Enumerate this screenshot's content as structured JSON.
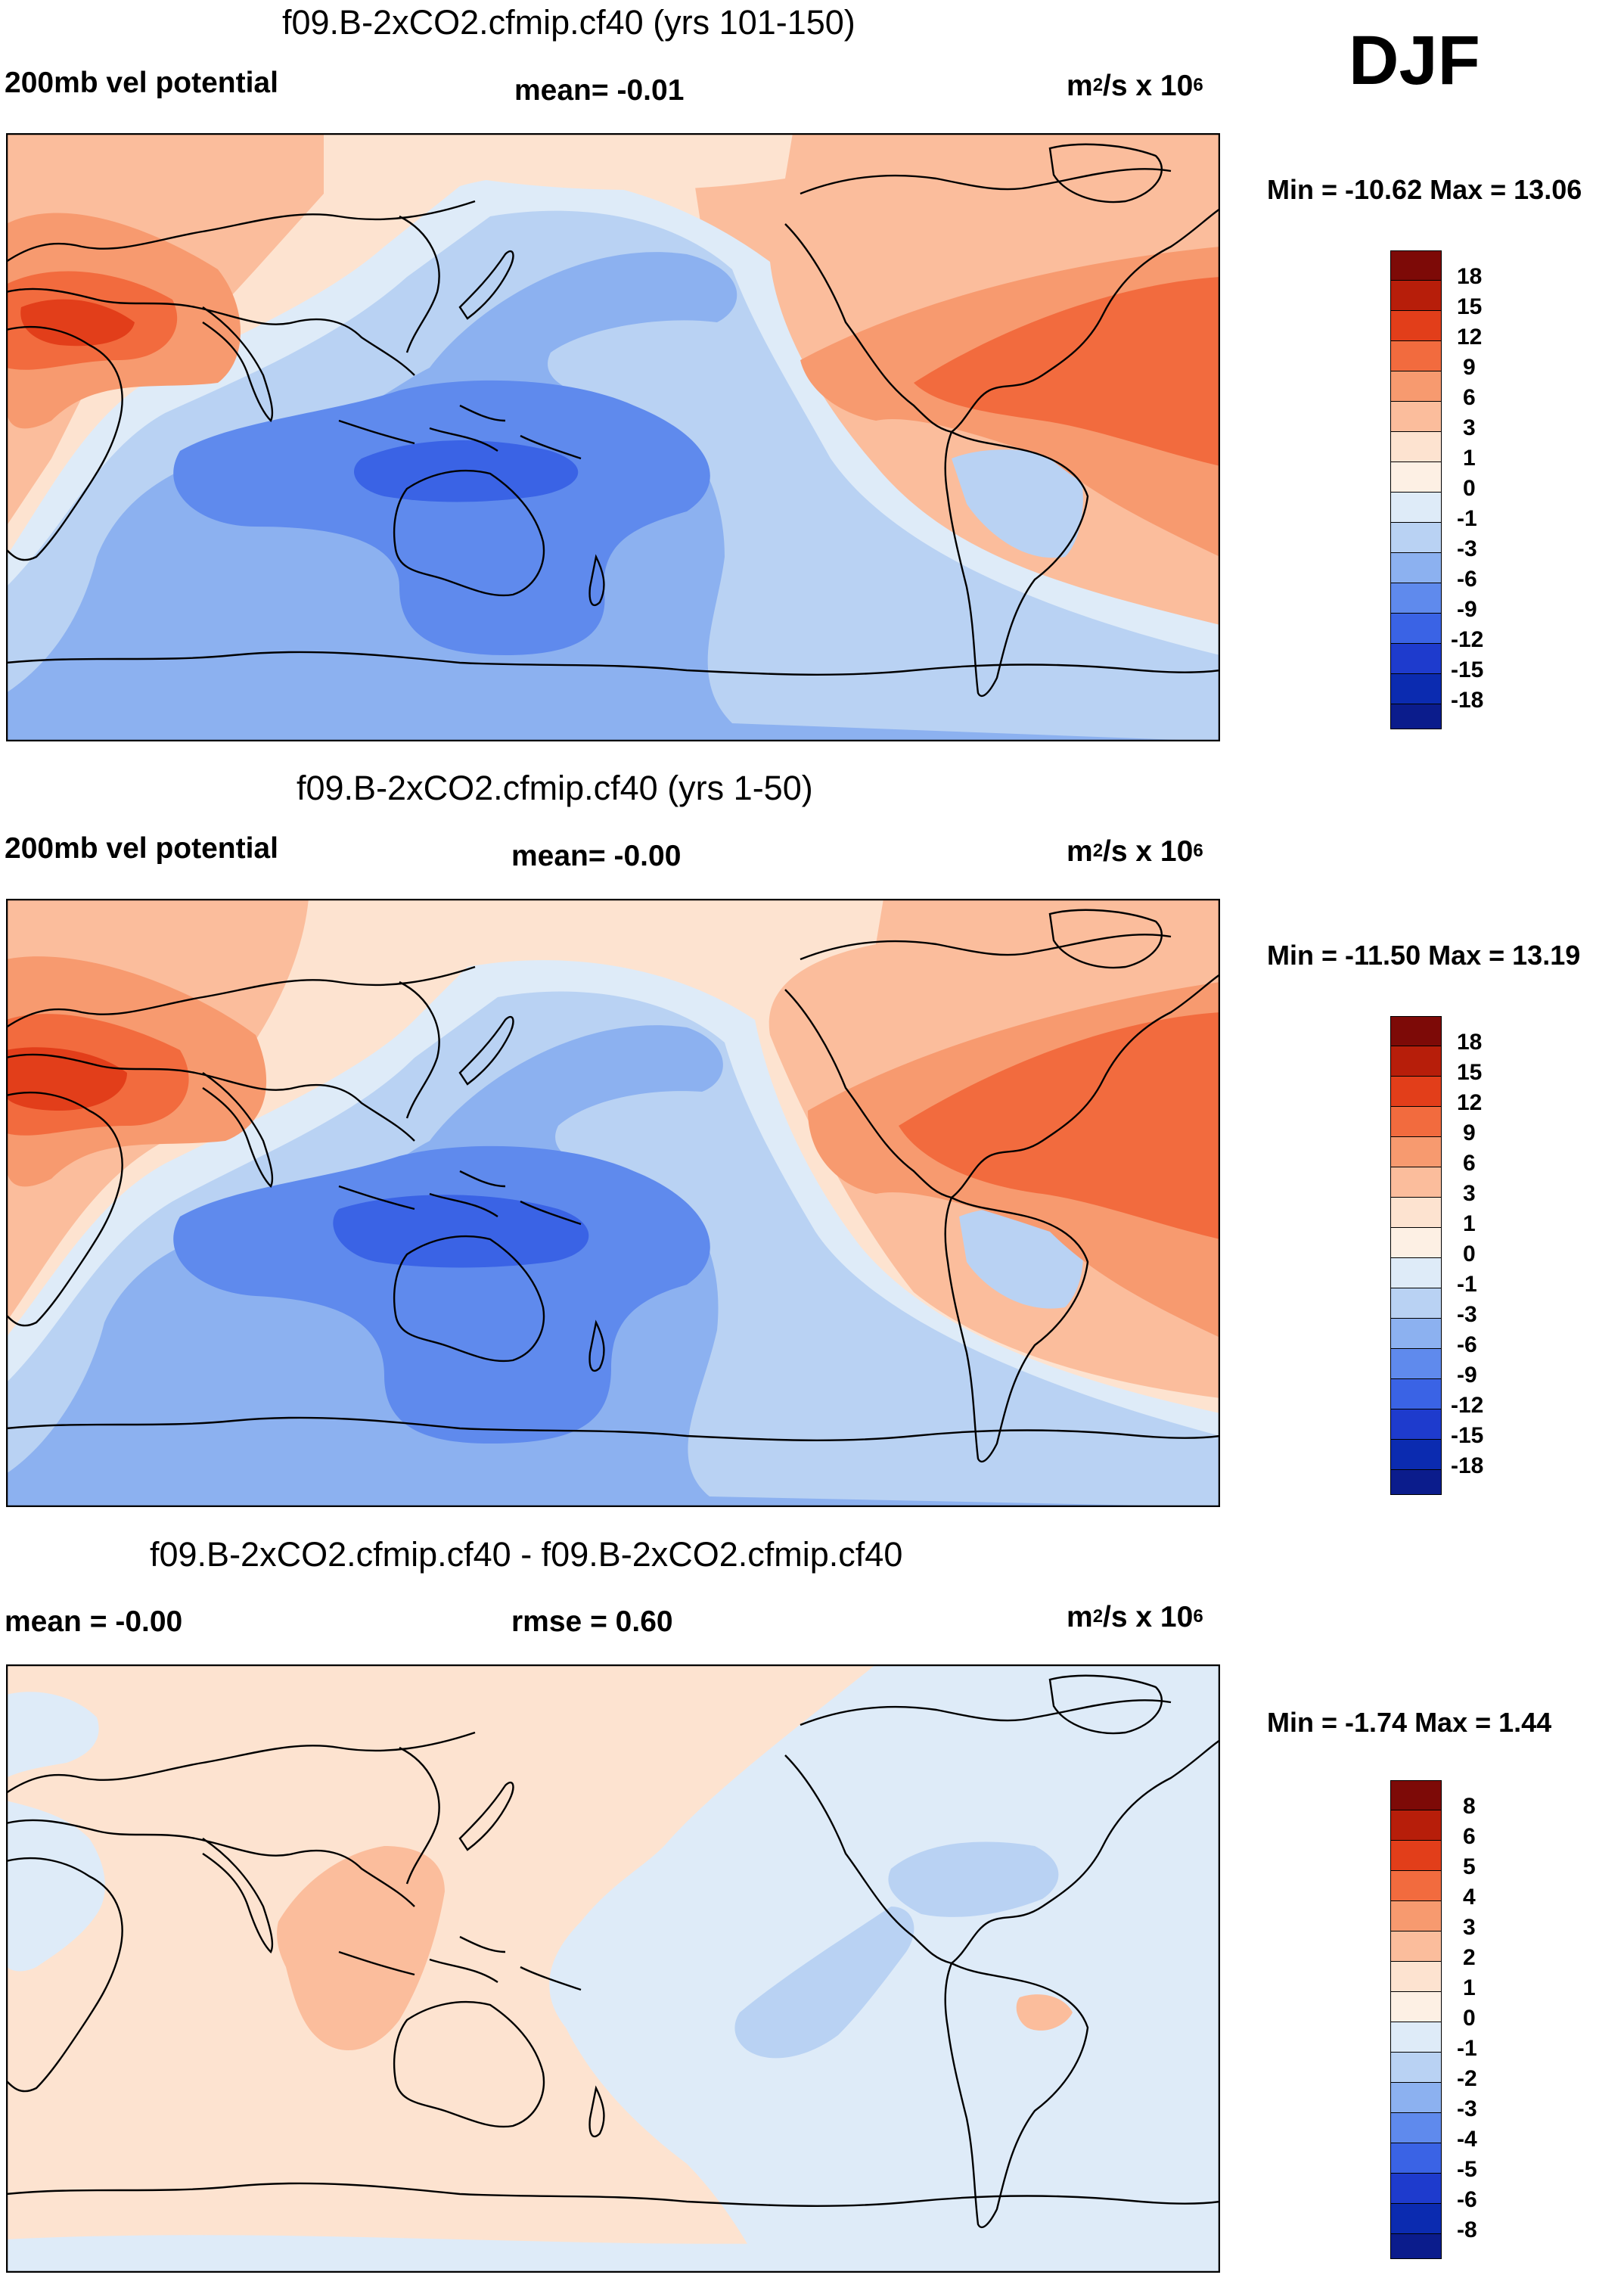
{
  "season": "DJF",
  "palette_warm": [
    "#fde3d0",
    "#fbbd9c",
    "#f79a6f",
    "#f26b3e",
    "#e23e1a",
    "#b71e0a",
    "#7d0a07"
  ],
  "palette_cool": [
    "#deebf8",
    "#b9d2f3",
    "#8cb1f0",
    "#5f8aed",
    "#3a63e5",
    "#1e3bcd",
    "#0b1c8c"
  ],
  "panels": [
    {
      "title": "f09.B-2xCO2.cfmip.cf40 (yrs 101-150)",
      "left_label": "200mb vel potential",
      "center_label": "mean=  -0.01",
      "units_base": "m",
      "units_exp1": "2",
      "units_mid": "/s x 10",
      "units_exp2": "6",
      "minmax": "Min = -10.62 Max =  13.06",
      "colorbar_labels": [
        "18",
        "15",
        "12",
        "9",
        "6",
        "3",
        "1",
        "0",
        "-1",
        "-3",
        "-6",
        "-9",
        "-12",
        "-15",
        "-18"
      ]
    },
    {
      "title": "f09.B-2xCO2.cfmip.cf40 (yrs 1-50)",
      "left_label": "200mb vel potential",
      "center_label": "mean=  -0.00",
      "units_base": "m",
      "units_exp1": "2",
      "units_mid": "/s x 10",
      "units_exp2": "6",
      "minmax": "Min = -11.50 Max =  13.19",
      "colorbar_labels": [
        "18",
        "15",
        "12",
        "9",
        "6",
        "3",
        "1",
        "0",
        "-1",
        "-3",
        "-6",
        "-9",
        "-12",
        "-15",
        "-18"
      ]
    },
    {
      "title": "f09.B-2xCO2.cfmip.cf40 - f09.B-2xCO2.cfmip.cf40",
      "left_label": "mean =  -0.00",
      "center_label": "rmse =   0.60",
      "units_base": "m",
      "units_exp1": "2",
      "units_mid": "/s x 10",
      "units_exp2": "6",
      "minmax": "Min =  -1.74 Max =   1.44",
      "colorbar_labels": [
        "8",
        "6",
        "5",
        "4",
        "3",
        "2",
        "1",
        "0",
        "-1",
        "-2",
        "-3",
        "-4",
        "-5",
        "-6",
        "-8"
      ]
    }
  ]
}
